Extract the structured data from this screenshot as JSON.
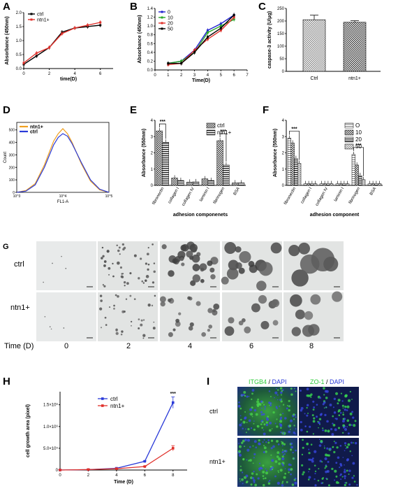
{
  "panels": {
    "A": {
      "label": "A",
      "chart_data": {
        "type": "line",
        "xlabel": "time(D)",
        "ylabel": "Absorbance (450nm)",
        "xlim": [
          0,
          7
        ],
        "ylim": [
          0,
          2.0
        ],
        "x_ticks": [
          "0",
          "2",
          "4",
          "6"
        ],
        "y_ticks": [
          "0.0",
          "0.5",
          "1.0",
          "1.5",
          "2.0"
        ],
        "legend_position": "top-left",
        "series": [
          {
            "name": "ctrl",
            "color": "#000000",
            "x": [
              0,
              1,
              2,
              3,
              4,
              5,
              6
            ],
            "y": [
              0.15,
              0.45,
              0.75,
              1.3,
              1.45,
              1.5,
              1.55
            ]
          },
          {
            "name": "ntn1+",
            "color": "#e0302a",
            "x": [
              0,
              1,
              2,
              3,
              4,
              5,
              6
            ],
            "y": [
              0.2,
              0.55,
              0.75,
              1.25,
              1.45,
              1.55,
              1.65
            ]
          }
        ]
      }
    },
    "B": {
      "label": "B",
      "chart_data": {
        "type": "line",
        "xlabel": "Time(D)",
        "ylabel": "Absorbance (450nm)",
        "xlim": [
          0,
          7
        ],
        "ylim": [
          0,
          1.4
        ],
        "x_ticks": [
          "0",
          "1",
          "2",
          "3",
          "4",
          "5",
          "6",
          "7"
        ],
        "y_ticks": [
          "0.0",
          "0.2",
          "0.4",
          "0.6",
          "0.8",
          "1.0",
          "1.2",
          "1.4"
        ],
        "legend_position": "top-left",
        "series": [
          {
            "name": "0",
            "color": "#2020d0",
            "x": [
              1,
              2,
              3,
              4,
              5,
              6
            ],
            "y": [
              0.15,
              0.2,
              0.45,
              0.9,
              1.05,
              1.25
            ]
          },
          {
            "name": "10",
            "color": "#2aa82a",
            "x": [
              1,
              2,
              3,
              4,
              5,
              6
            ],
            "y": [
              0.15,
              0.2,
              0.4,
              0.85,
              1.0,
              1.15
            ]
          },
          {
            "name": "20",
            "color": "#e0302a",
            "x": [
              1,
              2,
              3,
              4,
              5,
              6
            ],
            "y": [
              0.12,
              0.15,
              0.45,
              0.7,
              0.9,
              1.2
            ]
          },
          {
            "name": "50",
            "color": "#000000",
            "x": [
              1,
              2,
              3,
              4,
              5,
              6
            ],
            "y": [
              0.15,
              0.15,
              0.4,
              0.75,
              0.95,
              1.25
            ]
          }
        ]
      }
    },
    "C": {
      "label": "C",
      "chart_data": {
        "type": "bar",
        "ylabel": "caspase-3 activity (U/μg)",
        "categories": [
          "Ctrl",
          "ntn1+"
        ],
        "values": [
          205,
          195
        ],
        "errors": [
          18,
          6
        ],
        "ylim": [
          0,
          250
        ],
        "y_ticks": [
          "0",
          "50",
          "100",
          "150",
          "200",
          "250"
        ]
      }
    },
    "D": {
      "label": "D",
      "chart_data": {
        "type": "line",
        "xlabel": "FL1-A",
        "ylabel": "Count",
        "x_ticks": [
          "10^3",
          "10^4",
          "10^5"
        ],
        "y_ticks": [
          "0",
          "100",
          "200",
          "300",
          "400",
          "500"
        ],
        "ylim": [
          0,
          500
        ],
        "legend_position": "top-left",
        "series": [
          {
            "name": "ntn1+",
            "color": "#f0a020",
            "x": [
              3.0,
              3.2,
              3.4,
              3.6,
              3.8,
              3.9,
              4.0,
              4.1,
              4.2,
              4.4,
              4.6,
              4.8,
              5.0
            ],
            "y": [
              0,
              15,
              70,
              220,
              410,
              470,
              510,
              470,
              400,
              230,
              90,
              20,
              0
            ]
          },
          {
            "name": "ctrl",
            "color": "#2a3ad8",
            "x": [
              3.0,
              3.2,
              3.4,
              3.6,
              3.8,
              3.9,
              4.0,
              4.1,
              4.2,
              4.4,
              4.6,
              4.8,
              5.0
            ],
            "y": [
              0,
              10,
              60,
              200,
              380,
              440,
              470,
              450,
              390,
              240,
              100,
              25,
              0
            ]
          }
        ]
      }
    },
    "E": {
      "label": "E",
      "chart_data": {
        "type": "bar",
        "xlabel": "adhesion componenets",
        "ylabel": "Absorbance (550nm)",
        "categories": [
          "fibronectin",
          "collagen I",
          "collagen IV",
          "laminin I",
          "fibrinogen",
          "BSA"
        ],
        "ylim": [
          0,
          4
        ],
        "y_ticks": [
          "0",
          "1",
          "2",
          "3",
          "4"
        ],
        "legend_position": "top-right",
        "series": [
          {
            "name": "ctrl",
            "values": [
              3.35,
              0.45,
              0.2,
              0.4,
              2.75,
              0.15
            ]
          },
          {
            "name": "ntn1+",
            "values": [
              2.65,
              0.3,
              0.22,
              0.3,
              1.25,
              0.15
            ]
          }
        ],
        "annotations": [
          "***",
          "***"
        ]
      }
    },
    "F": {
      "label": "F",
      "chart_data": {
        "type": "bar",
        "xlabel": "adhesion component",
        "ylabel": "Absorbance (550nm)",
        "categories": [
          "fibronectin",
          "collagen I",
          "collagen IV",
          "laminin I",
          "fibrinogen",
          "BSA"
        ],
        "ylim": [
          0,
          4
        ],
        "y_ticks": [
          "0",
          "1",
          "2",
          "3",
          "4"
        ],
        "legend_position": "top-right",
        "series": [
          {
            "name": "O",
            "values": [
              2.9,
              0.1,
              0.1,
              0.1,
              1.9,
              0.1
            ]
          },
          {
            "name": "10",
            "values": [
              2.6,
              0.1,
              0.1,
              0.1,
              1.25,
              0.1
            ]
          },
          {
            "name": "20",
            "values": [
              1.65,
              0.1,
              0.1,
              0.1,
              0.6,
              0.1
            ]
          },
          {
            "name": "50",
            "values": [
              1.35,
              0.1,
              0.1,
              0.1,
              0.35,
              0.1
            ]
          }
        ],
        "annotations": [
          "***",
          "***"
        ]
      }
    },
    "G": {
      "label": "G",
      "rows": [
        "ctrl",
        "ntn1+"
      ],
      "time_label": "Time (D)",
      "times": [
        "0",
        "2",
        "4",
        "6",
        "8"
      ]
    },
    "H": {
      "label": "H",
      "chart_data": {
        "type": "line",
        "xlabel": "Time (D)",
        "ylabel": "cell growth area (pixel)",
        "xlim": [
          0,
          9
        ],
        "ylim": [
          0,
          1.8
        ],
        "x_ticks": [
          "0",
          "2",
          "4",
          "6",
          "8"
        ],
        "y_ticks": [
          "0",
          "5.0×10⁵",
          "1.0×10⁶",
          "1.5×10⁶"
        ],
        "legend_position": "top-left",
        "series": [
          {
            "name": "ctrl",
            "color": "#2a3ad8",
            "x": [
              0,
              2,
              4,
              6,
              8
            ],
            "y": [
              0,
              0.01,
              0.04,
              0.2,
              1.55
            ]
          },
          {
            "name": "ntn1+",
            "color": "#e0302a",
            "x": [
              0,
              2,
              4,
              6,
              8
            ],
            "y": [
              0,
              0.01,
              0.03,
              0.08,
              0.5
            ]
          }
        ],
        "annotations": [
          "***"
        ]
      }
    },
    "I": {
      "label": "I",
      "col1": {
        "marker": "ITGB4",
        "sep": " / ",
        "stain": "DAPI"
      },
      "col2": {
        "marker": "ZO-1",
        "sep": " / ",
        "stain": "DAPI"
      },
      "rows": [
        "ctrl",
        "ntn1+"
      ]
    }
  }
}
